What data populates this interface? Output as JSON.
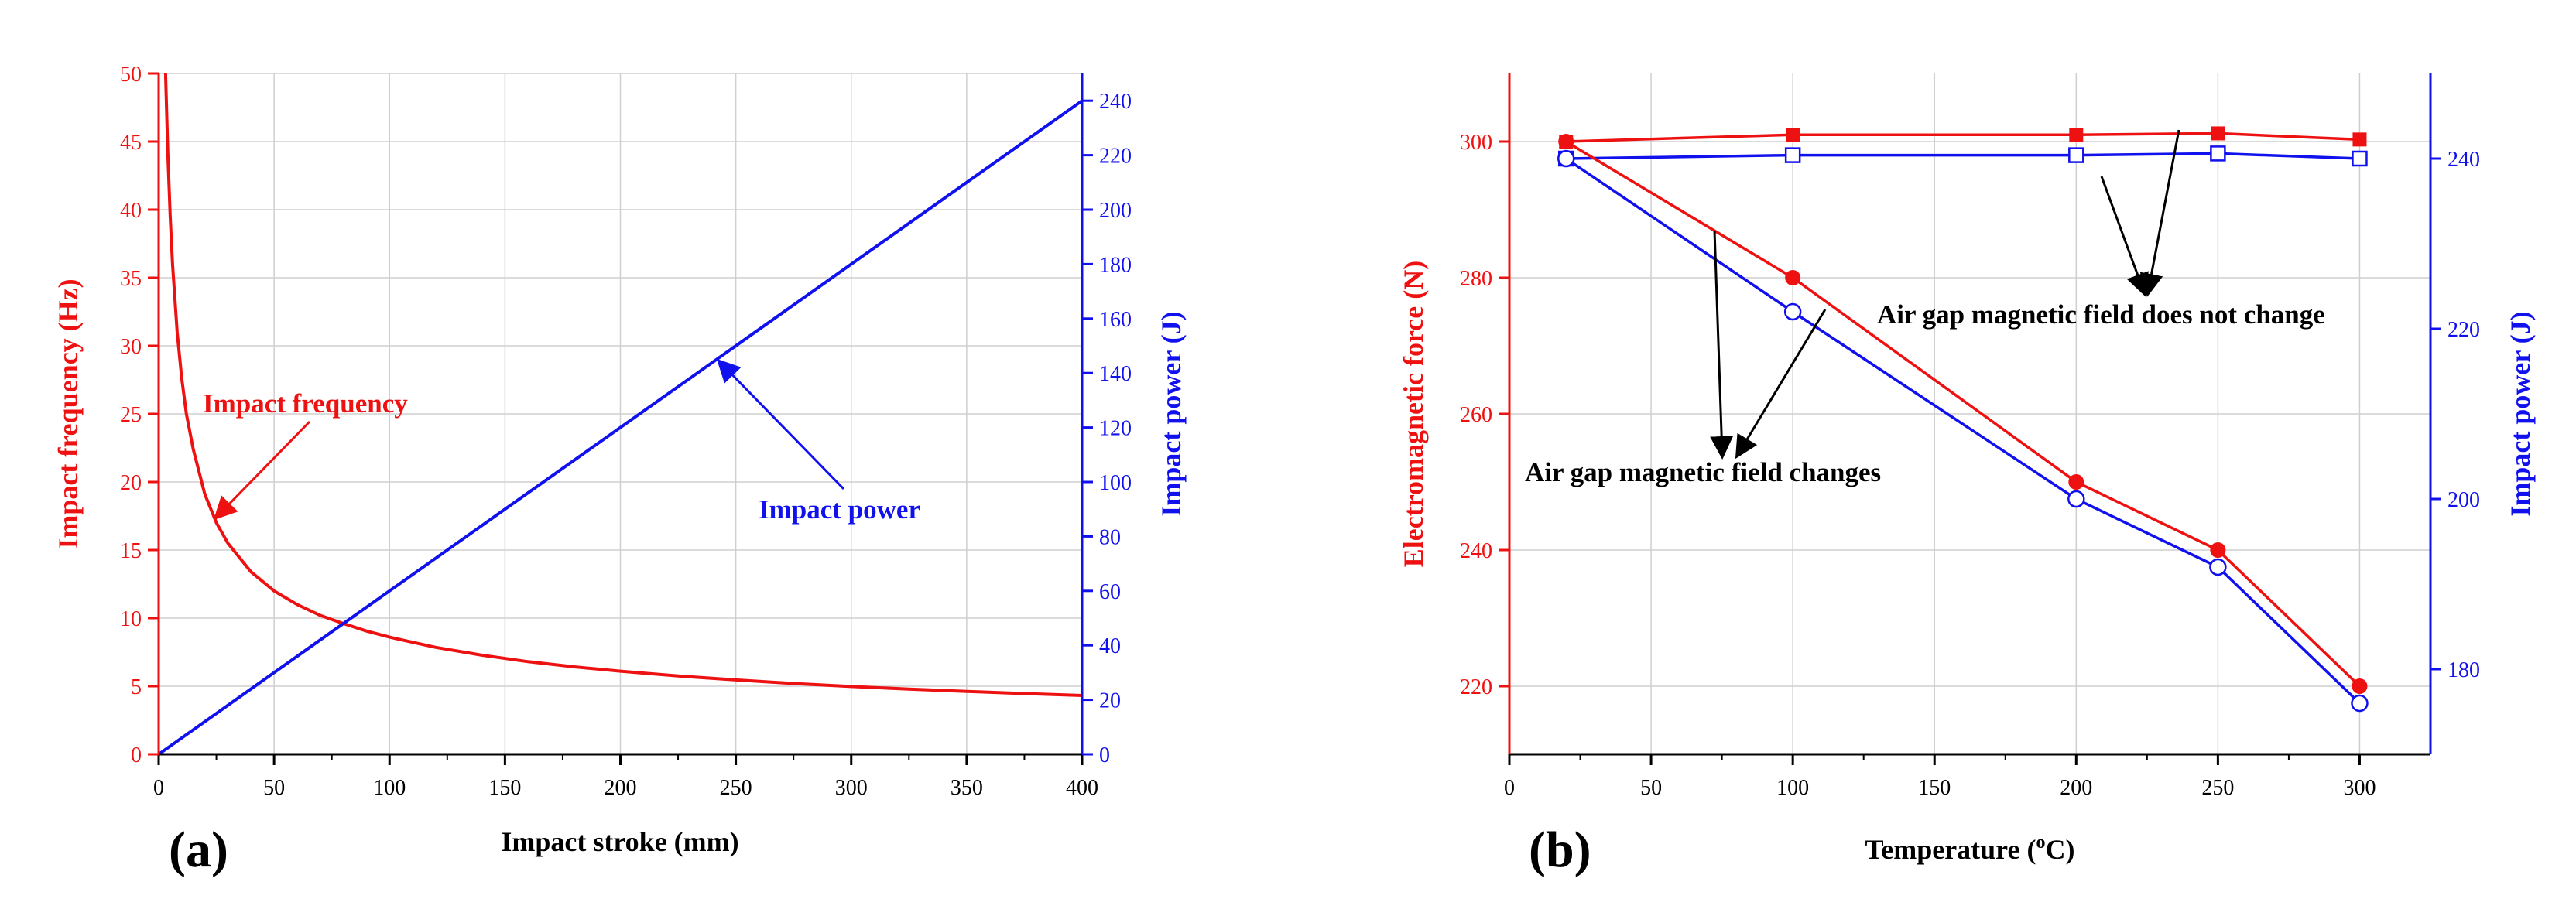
{
  "colors": {
    "red": "#ee1111",
    "blue": "#1111ee",
    "black": "#000000",
    "grid": "#cfcfcf"
  },
  "chart_data": [
    {
      "panel_label": "(a)",
      "type": "line",
      "xlabel": "Impact stroke (mm)",
      "ylabel_left": "Impact frequency (Hz)",
      "ylabel_right": "Impact power (J)",
      "xlim": [
        0,
        400
      ],
      "ylim_left": [
        0,
        50
      ],
      "ylim_right": [
        0,
        250
      ],
      "xticks": [
        0,
        50,
        100,
        150,
        200,
        250,
        300,
        350,
        400
      ],
      "yticks_left": [
        0,
        5,
        10,
        15,
        20,
        25,
        30,
        35,
        40,
        45,
        50
      ],
      "yticks_right": [
        0,
        20,
        40,
        60,
        80,
        100,
        120,
        140,
        160,
        180,
        200,
        220,
        240
      ],
      "grid": true,
      "series": [
        {
          "name": "Impact frequency",
          "axis": "left",
          "color": "#ee1111",
          "x": [
            3,
            4,
            5,
            6,
            8,
            10,
            12,
            15,
            20,
            25,
            30,
            40,
            50,
            60,
            70,
            80,
            90,
            100,
            120,
            140,
            160,
            180,
            200,
            225,
            250,
            275,
            300,
            325,
            350,
            375,
            400
          ],
          "y": [
            50,
            44,
            39.5,
            36,
            31,
            27.6,
            25,
            22.4,
            19.1,
            17,
            15.5,
            13.4,
            12,
            11,
            10.2,
            9.6,
            9.05,
            8.6,
            7.85,
            7.28,
            6.8,
            6.42,
            6.1,
            5.75,
            5.46,
            5.2,
            4.98,
            4.79,
            4.62,
            4.46,
            4.32
          ]
        },
        {
          "name": "Impact power",
          "axis": "right",
          "color": "#1111ee",
          "x": [
            0,
            400
          ],
          "y": [
            0,
            240
          ]
        }
      ],
      "annotations": [
        {
          "text": "Impact frequency",
          "color": "#ee1111"
        },
        {
          "text": "Impact power",
          "color": "#1111ee"
        }
      ]
    },
    {
      "panel_label": "(b)",
      "type": "line",
      "xlabel_main": "Temperature (",
      "xlabel_degree": "o",
      "xlabel_tail": "C)",
      "ylabel_left": "Electromagnetic force (N)",
      "ylabel_right": "Impact power (J)",
      "xlim": [
        0,
        325
      ],
      "ylim_left": [
        210,
        310
      ],
      "ylim_right": [
        170,
        250
      ],
      "xticks": [
        0,
        50,
        100,
        150,
        200,
        250,
        300
      ],
      "yticks_left": [
        220,
        240,
        260,
        280,
        300
      ],
      "yticks_right": [
        180,
        200,
        220,
        240
      ],
      "grid": true,
      "series": [
        {
          "name": "Electromagnetic force (field does not change)",
          "axis": "left",
          "color": "#ee1111",
          "marker": "filled-square",
          "x": [
            20,
            100,
            200,
            250,
            300
          ],
          "y": [
            300,
            301,
            301,
            301.2,
            300.3
          ]
        },
        {
          "name": "Impact power (field does not change)",
          "axis": "right",
          "color": "#1111ee",
          "marker": "open-square",
          "x": [
            20,
            100,
            200,
            250,
            300
          ],
          "y": [
            240,
            240.4,
            240.4,
            240.6,
            240
          ]
        },
        {
          "name": "Electromagnetic force (field changes)",
          "axis": "left",
          "color": "#ee1111",
          "marker": "filled-circle",
          "x": [
            20,
            100,
            200,
            250,
            300
          ],
          "y": [
            300,
            280,
            250,
            240,
            220
          ]
        },
        {
          "name": "Impact power (field changes)",
          "axis": "right",
          "color": "#1111ee",
          "marker": "open-circle",
          "x": [
            20,
            100,
            200,
            250,
            300
          ],
          "y": [
            240,
            222,
            200,
            192,
            176
          ]
        }
      ],
      "annotations": [
        {
          "text": "Air gap magnetic field does not change",
          "color": "#000000"
        },
        {
          "text": "Air gap magnetic field changes",
          "color": "#000000"
        }
      ]
    }
  ]
}
